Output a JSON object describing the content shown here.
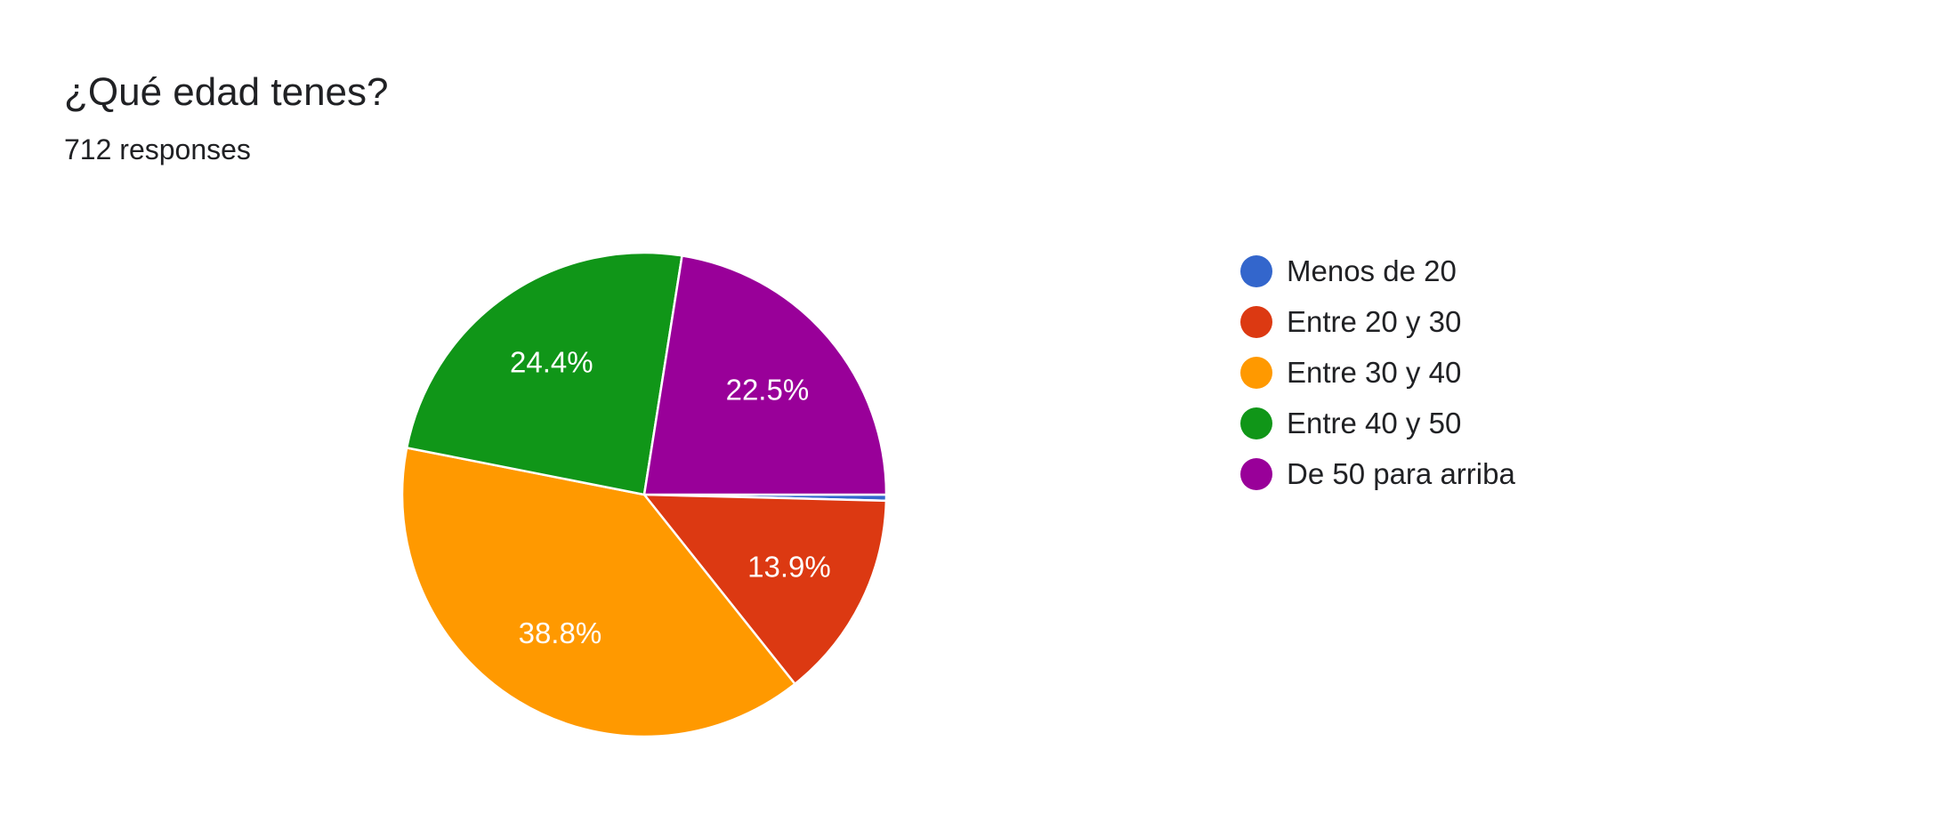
{
  "question": {
    "title": "¿Qué edad tenes?",
    "responses_text": "712 responses"
  },
  "chart_data": {
    "type": "pie",
    "title": "¿Qué edad tenes?",
    "total_responses": 712,
    "categories": [
      "Menos de 20",
      "Entre 20 y 30",
      "Entre 30 y 40",
      "Entre 40 y 50",
      "De 50 para arriba"
    ],
    "values": [
      0.4,
      13.9,
      38.8,
      24.4,
      22.5
    ],
    "labels": [
      "",
      "13.9%",
      "38.8%",
      "24.4%",
      "22.5%"
    ],
    "colors": [
      "#3366cc",
      "#dc3912",
      "#ff9900",
      "#109618",
      "#990099"
    ],
    "start_angle": "3 o'clock, clockwise",
    "legend_position": "right"
  }
}
